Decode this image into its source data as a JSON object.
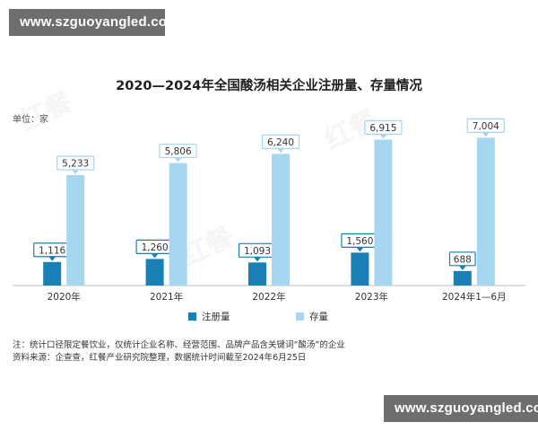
{
  "watermark": "www.szguoyangled.com",
  "unit_label": "单位：家",
  "notes": [
    "注：统计口径限定餐饮业，仅统计企业名称、经营范围、品牌产品含关键词“酸汤”的企业",
    "资料来源：企查查，红餐产业研究院整理，数据统计时间截至2024年6月25日"
  ],
  "chart_data": {
    "type": "bar",
    "title": "2020—2024年全国酸汤相关企业注册量、存量情况",
    "categories": [
      "2020年",
      "2021年",
      "2022年",
      "2023年",
      "2024年1—6月"
    ],
    "series": [
      {
        "name": "注册量",
        "color": "#1a7fb5",
        "values": [
          1116,
          1260,
          1093,
          1560,
          688
        ],
        "labels": [
          "1,116",
          "1,260",
          "1,093",
          "1,560",
          "688"
        ]
      },
      {
        "name": "存量",
        "color": "#a7d6f0",
        "values": [
          5233,
          5806,
          6240,
          6915,
          7004
        ],
        "labels": [
          "5,233",
          "5,806",
          "6,240",
          "6,915",
          "7,004"
        ]
      }
    ],
    "ylim": [
      0,
      8000
    ],
    "grid": false,
    "legend": "bottom"
  }
}
